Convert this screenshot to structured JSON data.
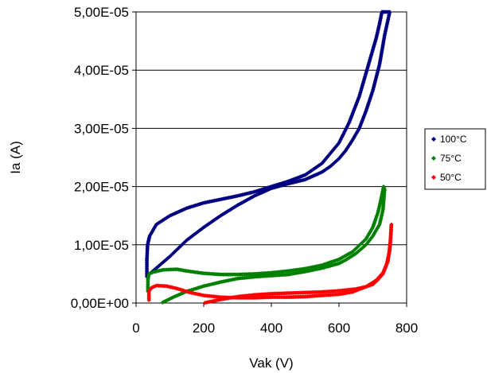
{
  "chart_data": {
    "type": "scatter",
    "xlabel": "Vak (V)",
    "ylabel": "Ia (A)",
    "xlim": [
      0,
      800
    ],
    "ylim": [
      0,
      5e-05
    ],
    "x_ticks": [
      "0",
      "200",
      "400",
      "600",
      "800"
    ],
    "y_ticks": [
      "0,00E+00",
      "1,00E-05",
      "2,00E-05",
      "3,00E-05",
      "4,00E-05",
      "5,00E-05"
    ],
    "y_tick_values": [
      0,
      1e-05,
      2e-05,
      3e-05,
      4e-05,
      5e-05
    ],
    "x_tick_values": [
      0,
      200,
      400,
      600,
      800
    ],
    "grid": "horizontal",
    "legend_position": "right",
    "series": [
      {
        "name": "100°C",
        "color": "#000080",
        "x": [
          32,
          32,
          34,
          40,
          60,
          100,
          150,
          200,
          250,
          300,
          350,
          400,
          450,
          500,
          550,
          600,
          630,
          660,
          690,
          710,
          720,
          727,
          735,
          750,
          735,
          720,
          700,
          680,
          660,
          640,
          620,
          600,
          575,
          550,
          500,
          450,
          400,
          350,
          300,
          250,
          200,
          150,
          100,
          60,
          40,
          34,
          32
        ],
        "y": [
          4.5e-06,
          7.5e-06,
          1e-05,
          1.15e-05,
          1.35e-05,
          1.5e-05,
          1.63e-05,
          1.72e-05,
          1.78e-05,
          1.84e-05,
          1.91e-05,
          2e-05,
          2.09e-05,
          2.2e-05,
          2.4e-05,
          2.75e-05,
          3.1e-05,
          3.55e-05,
          4.15e-05,
          4.55e-05,
          4.8e-05,
          5e-05,
          5e-05,
          5e-05,
          4.6e-05,
          4.1e-05,
          3.65e-05,
          3.3e-05,
          3e-05,
          2.8e-05,
          2.62e-05,
          2.48e-05,
          2.35e-05,
          2.25e-05,
          2.12e-05,
          2.05e-05,
          1.97e-05,
          1.84e-05,
          1.68e-05,
          1.5e-05,
          1.3e-05,
          1.08e-05,
          8e-06,
          6e-06,
          5e-06,
          4.6e-06,
          4.5e-06
        ]
      },
      {
        "name": "75°C",
        "color": "#008000",
        "x": [
          35,
          35,
          38,
          50,
          80,
          120,
          150,
          200,
          250,
          300,
          350,
          400,
          450,
          500,
          550,
          600,
          640,
          680,
          700,
          715,
          725,
          732,
          735,
          730,
          720,
          700,
          680,
          650,
          620,
          600,
          550,
          500,
          450,
          400,
          350,
          300,
          250,
          200,
          150,
          110,
          75
        ],
        "y": [
          2e-06,
          4e-06,
          5e-06,
          5.3e-06,
          5.7e-06,
          5.8e-06,
          5.5e-06,
          5.1e-06,
          4.9e-06,
          4.9e-06,
          5e-06,
          5.2e-06,
          5.5e-06,
          5.9e-06,
          6.5e-06,
          7.5e-06,
          8.8e-06,
          1.1e-05,
          1.3e-05,
          1.55e-05,
          1.8e-05,
          2e-05,
          1.95e-05,
          1.6e-05,
          1.35e-05,
          1.15e-05,
          1e-05,
          8.5e-06,
          7.4e-06,
          6.8e-06,
          6e-06,
          5.4e-06,
          4.9e-06,
          4.7e-06,
          4.5e-06,
          4.2e-06,
          3.6e-06,
          2.9e-06,
          2e-06,
          1e-06,
          0.0
        ]
      },
      {
        "name": "50°C",
        "color": "#ff0000",
        "x": [
          38,
          38,
          45,
          60,
          90,
          120,
          160,
          200,
          250,
          300,
          350,
          400,
          450,
          500,
          550,
          600,
          640,
          680,
          710,
          730,
          745,
          752,
          755,
          750,
          740,
          730,
          715,
          700,
          680,
          650,
          600,
          550,
          500,
          450,
          400,
          350,
          300,
          250,
          200
        ],
        "y": [
          5e-07,
          2e-06,
          2.6e-06,
          3e-06,
          2.9e-06,
          2.5e-06,
          1.8e-06,
          1.3e-06,
          1e-06,
          9e-07,
          9e-07,
          1e-06,
          1e-06,
          1.1e-06,
          1.3e-06,
          1.5e-06,
          1.9e-06,
          2.8e-06,
          3.9e-06,
          5.2e-06,
          7.2e-06,
          1.05e-05,
          1.35e-05,
          9e-06,
          6.5e-06,
          5e-06,
          4e-06,
          3.2e-06,
          2.8e-06,
          2.4e-06,
          2.1e-06,
          1.9e-06,
          1.8e-06,
          1.7e-06,
          1.6e-06,
          1.4e-06,
          1.1e-06,
          6e-07,
          0.0
        ]
      }
    ]
  }
}
